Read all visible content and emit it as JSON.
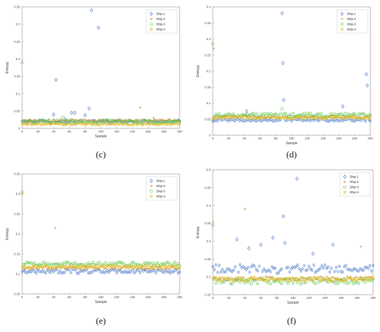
{
  "colors": {
    "Ship-1": "#3a6fc4",
    "Ship-2": "#d98a3e",
    "Ship-3": "#4fbf3c",
    "Ship-4": "#e3c238"
  },
  "markers": {
    "Ship-1": "diamond",
    "Ship-2": "plus",
    "Ship-3": "circle",
    "Ship-4": "star"
  },
  "chart_data": [
    {
      "type": "scatter",
      "panel": "(c)",
      "title": "",
      "xlabel": "Sample",
      "ylabel": "Entropy",
      "xlim": [
        0,
        200
      ],
      "ylim": [
        0,
        0.35
      ],
      "xticks": [
        0,
        20,
        40,
        60,
        80,
        100,
        120,
        140,
        160,
        180,
        200
      ],
      "xtick_labels": [
        "0",
        "20",
        "40",
        "60",
        "80",
        "100",
        "120",
        "140",
        "160",
        "180",
        "200"
      ],
      "yticks": [
        0,
        0.05,
        0.1,
        0.15,
        0.2,
        0.25,
        0.3,
        0.35
      ],
      "ytick_labels": [
        "0",
        "0.05",
        "0.1",
        "0.15",
        "0.2",
        "0.25",
        "0.3",
        "0.35"
      ],
      "legend": {
        "position": "top-right",
        "entries": [
          "Ship-1",
          "Ship-2",
          "Ship-3",
          "Ship-4"
        ]
      },
      "series": [
        {
          "name": "Ship-1",
          "base": 0.019,
          "spread": 0.004,
          "outliers": [
            [
              40,
              0.04
            ],
            [
              43,
              0.14
            ],
            [
              55,
              0.025
            ],
            [
              63,
              0.045
            ],
            [
              67,
              0.045
            ],
            [
              80,
              0.038
            ],
            [
              85,
              0.057
            ],
            [
              88,
              0.34
            ],
            [
              97,
              0.29
            ]
          ]
        },
        {
          "name": "Ship-2",
          "base": 0.023,
          "spread": 0.003,
          "outliers": [
            [
              150,
              0.06
            ],
            [
              167,
              0.03
            ]
          ]
        },
        {
          "name": "Ship-3",
          "base": 0.02,
          "spread": 0.005,
          "outliers": [
            [
              0,
              0.19
            ],
            [
              52,
              0.032
            ]
          ]
        },
        {
          "name": "Ship-4",
          "base": 0.012,
          "spread": 0.003,
          "outliers": []
        }
      ]
    },
    {
      "type": "scatter",
      "panel": "(d)",
      "title": "",
      "xlabel": "Sample",
      "ylabel": "Entropy",
      "xlim": [
        0,
        200
      ],
      "ylim": [
        0,
        0.4
      ],
      "xticks": [
        0,
        20,
        40,
        60,
        80,
        100,
        120,
        140,
        160,
        180,
        200
      ],
      "xtick_labels": [
        "0",
        "20",
        "40",
        "60",
        "80",
        "100",
        "120",
        "140",
        "160",
        "180",
        "200"
      ],
      "yticks": [
        0,
        0.05,
        0.1,
        0.15,
        0.2,
        0.25,
        0.3,
        0.35,
        0.4
      ],
      "ytick_labels": [
        "0",
        "0.05",
        "0.1",
        "0.15",
        "0.2",
        "0.25",
        "0.3",
        "0.35",
        "0.4"
      ],
      "legend": {
        "position": "top-right",
        "entries": [
          "Ship-1",
          "Ship-2",
          "Ship-3",
          "Ship-4"
        ]
      },
      "series": [
        {
          "name": "Ship-1",
          "base": 0.048,
          "spread": 0.004,
          "outliers": [
            [
              43,
              0.075
            ],
            [
              88,
              0.38
            ],
            [
              89,
              0.225
            ],
            [
              90,
              0.11
            ],
            [
              165,
              0.09
            ],
            [
              195,
              0.19
            ],
            [
              196,
              0.155
            ]
          ]
        },
        {
          "name": "Ship-2",
          "base": 0.058,
          "spread": 0.004,
          "outliers": [
            [
              1,
              0.27
            ]
          ]
        },
        {
          "name": "Ship-3",
          "base": 0.063,
          "spread": 0.006,
          "outliers": [
            [
              0,
              0.285
            ],
            [
              88,
              0.082
            ]
          ]
        },
        {
          "name": "Ship-4",
          "base": 0.055,
          "spread": 0.004,
          "outliers": []
        }
      ]
    },
    {
      "type": "scatter",
      "panel": "(e)",
      "title": "",
      "xlabel": "Sample",
      "ylabel": "Entropy",
      "xlim": [
        0,
        200
      ],
      "ylim": [
        0.05,
        0.35
      ],
      "xticks": [
        0,
        20,
        40,
        60,
        80,
        100,
        120,
        140,
        160,
        180,
        200
      ],
      "xtick_labels": [
        "0",
        "20",
        "40",
        "60",
        "80",
        "100",
        "120",
        "140",
        "160",
        "180",
        "200"
      ],
      "yticks": [
        0.05,
        0.1,
        0.15,
        0.2,
        0.25,
        0.3,
        0.35
      ],
      "ytick_labels": [
        "0.05",
        "0.1",
        "0.15",
        "0.2",
        "0.25",
        "0.3",
        "0.35"
      ],
      "legend": {
        "position": "top-right",
        "entries": [
          "Ship-1",
          "Ship-2",
          "Ship-3",
          "Ship-4"
        ]
      },
      "series": [
        {
          "name": "Ship-1",
          "base": 0.107,
          "spread": 0.005,
          "outliers": []
        },
        {
          "name": "Ship-2",
          "base": 0.115,
          "spread": 0.004,
          "outliers": [
            [
              42,
              0.215
            ],
            [
              0,
              0.3
            ]
          ]
        },
        {
          "name": "Ship-3",
          "base": 0.125,
          "spread": 0.005,
          "outliers": [
            [
              0,
              0.305
            ]
          ]
        },
        {
          "name": "Ship-4",
          "base": 0.118,
          "spread": 0.004,
          "outliers": []
        }
      ]
    },
    {
      "type": "scatter",
      "panel": "(f)",
      "title": "",
      "xlabel": "Sample",
      "ylabel": "Entropy",
      "xlim": [
        0,
        200
      ],
      "ylim": [
        0.15,
        0.5
      ],
      "xticks": [
        0,
        20,
        40,
        60,
        80,
        100,
        120,
        140,
        160,
        180,
        200
      ],
      "xtick_labels": [
        "0",
        "20",
        "40",
        "60",
        "80",
        "100",
        "120",
        "140",
        "160",
        "180",
        "200"
      ],
      "yticks": [
        0.15,
        0.2,
        0.25,
        0.3,
        0.35,
        0.4,
        0.45,
        0.5
      ],
      "ytick_labels": [
        "0.15",
        "0.2",
        "0.25",
        "0.3",
        "0.35",
        "0.4",
        "0.45",
        "0.5"
      ],
      "legend": {
        "position": "top-right",
        "entries": [
          "Ship-1",
          "Ship-2",
          "Ship-3",
          "Ship-4"
        ]
      },
      "series": [
        {
          "name": "Ship-1",
          "base": 0.222,
          "spread": 0.012,
          "outliers": [
            [
              30,
              0.305
            ],
            [
              45,
              0.28
            ],
            [
              60,
              0.29
            ],
            [
              75,
              0.31
            ],
            [
              88,
              0.37
            ],
            [
              90,
              0.295
            ],
            [
              105,
              0.475
            ],
            [
              125,
              0.265
            ],
            [
              150,
              0.29
            ]
          ]
        },
        {
          "name": "Ship-2",
          "base": 0.195,
          "spread": 0.006,
          "outliers": [
            [
              0,
              0.355
            ],
            [
              40,
              0.39
            ],
            [
              185,
              0.285
            ]
          ]
        },
        {
          "name": "Ship-3",
          "base": 0.188,
          "spread": 0.008,
          "outliers": [
            [
              0,
              0.345
            ]
          ]
        },
        {
          "name": "Ship-4",
          "base": 0.193,
          "spread": 0.006,
          "outliers": []
        }
      ]
    }
  ]
}
